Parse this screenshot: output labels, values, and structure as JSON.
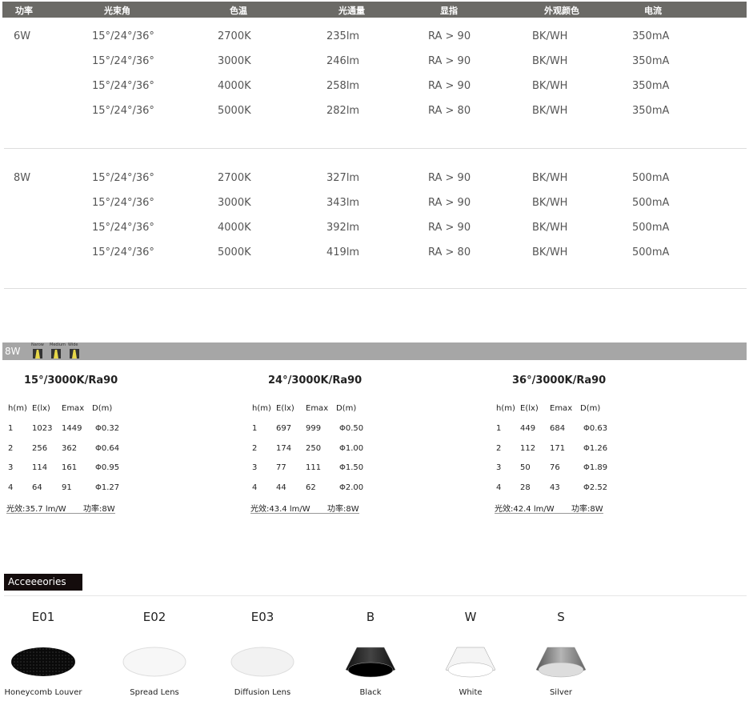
{
  "spec_table": {
    "headers": [
      "功率",
      "光束角",
      "色温",
      "光通量",
      "显指",
      "外观颜色",
      "电流"
    ],
    "groups": [
      {
        "power": "6W",
        "rows": [
          [
            "15°/24°/36°",
            "2700K",
            "235lm",
            "RA > 90",
            "BK/WH",
            "350mA"
          ],
          [
            "15°/24°/36°",
            "3000K",
            "246lm",
            "RA > 90",
            "BK/WH",
            "350mA"
          ],
          [
            "15°/24°/36°",
            "4000K",
            "258lm",
            "RA > 90",
            "BK/WH",
            "350mA"
          ],
          [
            "15°/24°/36°",
            "5000K",
            "282lm",
            "RA > 80",
            "BK/WH",
            "350mA"
          ]
        ]
      },
      {
        "power": "8W",
        "rows": [
          [
            "15°/24°/36°",
            "2700K",
            "327lm",
            "RA > 90",
            "BK/WH",
            "500mA"
          ],
          [
            "15°/24°/36°",
            "3000K",
            "343lm",
            "RA > 90",
            "BK/WH",
            "500mA"
          ],
          [
            "15°/24°/36°",
            "4000K",
            "392lm",
            "RA > 90",
            "BK/WH",
            "500mA"
          ],
          [
            "15°/24°/36°",
            "5000K",
            "419lm",
            "RA > 80",
            "BK/WH",
            "500mA"
          ]
        ]
      }
    ]
  },
  "photometric": {
    "bar_label": "8W",
    "beam_labels": [
      "Narow",
      "Medium",
      "Wide"
    ],
    "headers": [
      "h(m)",
      "E(lx)",
      "Emax",
      "D(m)"
    ],
    "blocks": [
      {
        "title": "15°/3000K/Ra90",
        "rows": [
          [
            "1",
            "1023",
            "1449",
            "Φ0.32"
          ],
          [
            "2",
            "256",
            "362",
            "Φ0.64"
          ],
          [
            "3",
            "114",
            "161",
            "Φ0.95"
          ],
          [
            "4",
            "64",
            "91",
            "Φ1.27"
          ]
        ],
        "efficacy": "光效:35.7 lm/W",
        "power": "功率:8W"
      },
      {
        "title": "24°/3000K/Ra90",
        "rows": [
          [
            "1",
            "697",
            "999",
            "Φ0.50"
          ],
          [
            "2",
            "174",
            "250",
            "Φ1.00"
          ],
          [
            "3",
            "77",
            "111",
            "Φ1.50"
          ],
          [
            "4",
            "44",
            "62",
            "Φ2.00"
          ]
        ],
        "efficacy": "光效:43.4 lm/W",
        "power": "功率:8W"
      },
      {
        "title": "36°/3000K/Ra90",
        "rows": [
          [
            "1",
            "449",
            "684",
            "Φ0.63"
          ],
          [
            "2",
            "112",
            "171",
            "Φ1.26"
          ],
          [
            "3",
            "50",
            "76",
            "Φ1.89"
          ],
          [
            "4",
            "28",
            "43",
            "Φ2.52"
          ]
        ],
        "efficacy": "光效:42.4 lm/W",
        "power": "功率:8W"
      }
    ]
  },
  "accessories": {
    "title": "Acceeeories",
    "items": [
      {
        "code": "E01",
        "name": "Honeycomb Louver",
        "icon": "honeycomb-louver"
      },
      {
        "code": "E02",
        "name": "Spread Lens",
        "icon": "spread-lens"
      },
      {
        "code": "E03",
        "name": "Diffusion Lens",
        "icon": "diffusion-lens"
      },
      {
        "code": "B",
        "name": "Black",
        "icon": "black-reflector",
        "color": "#111111"
      },
      {
        "code": "W",
        "name": "White",
        "icon": "white-reflector",
        "color": "#f4f4f4"
      },
      {
        "code": "S",
        "name": "Silver",
        "icon": "silver-reflector",
        "color": "#b5b5b5"
      }
    ]
  }
}
